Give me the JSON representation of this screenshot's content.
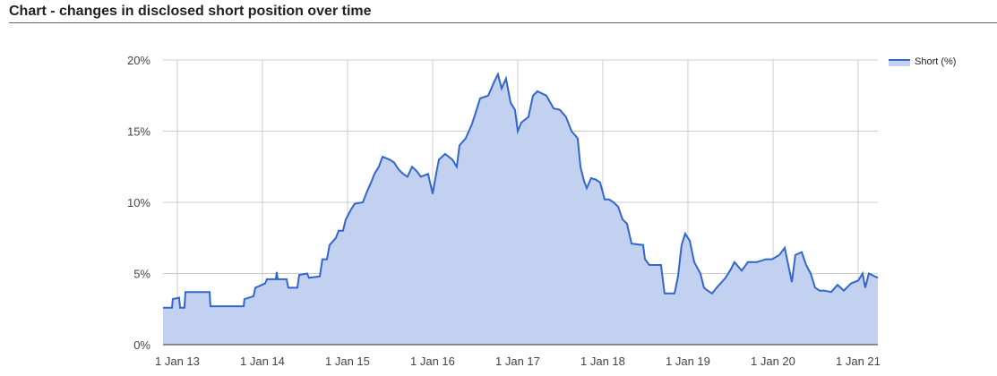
{
  "chart_data": {
    "type": "area",
    "title": "Chart - changes in disclosed short position over time",
    "series": [
      {
        "name": "Short (%)",
        "color": "#3366cc",
        "fill": "#c2d1f0",
        "x": [
          2012.832,
          2012.937,
          2012.947,
          2013.021,
          2013.032,
          2013.084,
          2013.095,
          2013.379,
          2013.389,
          2013.779,
          2013.789,
          2013.895,
          2013.916,
          2014.032,
          2014.053,
          2014.158,
          2014.168,
          2014.179,
          2014.284,
          2014.305,
          2014.411,
          2014.432,
          2014.526,
          2014.547,
          2014.674,
          2014.705,
          2014.758,
          2014.789,
          2014.863,
          2014.895,
          2014.947,
          2014.979,
          2015.042,
          2015.084,
          2015.179,
          2015.232,
          2015.284,
          2015.316,
          2015.368,
          2015.411,
          2015.495,
          2015.547,
          2015.6,
          2015.653,
          2015.705,
          2015.758,
          2015.811,
          2015.863,
          2015.947,
          2016.0,
          2016.042,
          2016.074,
          2016.147,
          2016.232,
          2016.284,
          2016.316,
          2016.389,
          2016.463,
          2016.516,
          2016.558,
          2016.653,
          2016.726,
          2016.768,
          2016.811,
          2016.863,
          2016.916,
          2016.968,
          2017.0,
          2017.042,
          2017.126,
          2017.179,
          2017.232,
          2017.337,
          2017.421,
          2017.495,
          2017.568,
          2017.632,
          2017.705,
          2017.737,
          2017.779,
          2017.811,
          2017.863,
          2017.916,
          2017.968,
          2018.021,
          2018.074,
          2018.126,
          2018.179,
          2018.232,
          2018.284,
          2018.337,
          2018.474,
          2018.495,
          2018.547,
          2018.684,
          2018.726,
          2018.842,
          2018.884,
          2018.926,
          2018.968,
          2019.021,
          2019.074,
          2019.147,
          2019.189,
          2019.232,
          2019.284,
          2019.337,
          2019.442,
          2019.505,
          2019.547,
          2019.632,
          2019.705,
          2019.811,
          2019.916,
          2019.989,
          2020.074,
          2020.137,
          2020.179,
          2020.221,
          2020.263,
          2020.337,
          2020.389,
          2020.442,
          2020.495,
          2020.547,
          2020.6,
          2020.684,
          2020.758,
          2020.832,
          2020.916,
          2021.0,
          2021.053,
          2021.084,
          2021.126,
          2021.232
        ],
        "values": [
          2.6,
          2.6,
          3.2,
          3.3,
          2.6,
          2.6,
          3.7,
          3.7,
          2.7,
          2.7,
          3.2,
          3.4,
          4.0,
          4.3,
          4.6,
          4.6,
          5.1,
          4.6,
          4.6,
          4.0,
          4.0,
          4.9,
          5.0,
          4.7,
          4.8,
          6.0,
          6.0,
          7.0,
          7.5,
          8.0,
          8.0,
          8.8,
          9.5,
          9.9,
          10.0,
          10.8,
          11.5,
          12.0,
          12.5,
          13.2,
          13.0,
          12.8,
          12.3,
          12.0,
          11.8,
          12.5,
          12.2,
          11.8,
          12.0,
          10.6,
          12.0,
          13.0,
          13.4,
          13.0,
          12.5,
          14.0,
          14.5,
          15.5,
          16.5,
          17.3,
          17.5,
          18.5,
          19.0,
          18.0,
          18.7,
          17.0,
          16.5,
          15.0,
          15.6,
          16.0,
          17.5,
          17.8,
          17.5,
          16.6,
          16.5,
          16.0,
          15.0,
          14.5,
          12.5,
          11.5,
          11.0,
          11.7,
          11.6,
          11.4,
          10.2,
          10.2,
          10.0,
          9.7,
          8.8,
          8.5,
          7.1,
          7.0,
          6.0,
          5.6,
          5.6,
          3.6,
          3.6,
          4.8,
          7.0,
          7.8,
          7.3,
          5.8,
          5.0,
          4.0,
          3.8,
          3.6,
          4.0,
          4.7,
          5.3,
          5.8,
          5.2,
          5.8,
          5.8,
          6.0,
          6.0,
          6.3,
          6.8,
          5.6,
          4.4,
          6.3,
          6.5,
          5.6,
          5.0,
          4.0,
          3.8,
          3.8,
          3.7,
          4.2,
          3.8,
          4.3,
          4.5,
          5.0,
          4.0,
          5.0,
          4.7
        ]
      }
    ],
    "xlim": [
      2012.832,
      2021.232
    ],
    "xticks": [
      {
        "value": 2013,
        "label": "1 Jan 13"
      },
      {
        "value": 2014,
        "label": "1 Jan 14"
      },
      {
        "value": 2015,
        "label": "1 Jan 15"
      },
      {
        "value": 2016,
        "label": "1 Jan 16"
      },
      {
        "value": 2017,
        "label": "1 Jan 17"
      },
      {
        "value": 2018,
        "label": "1 Jan 18"
      },
      {
        "value": 2019,
        "label": "1 Jan 19"
      },
      {
        "value": 2020,
        "label": "1 Jan 20"
      },
      {
        "value": 2021,
        "label": "1 Jan 21"
      }
    ],
    "ylim": [
      0,
      20
    ],
    "yticks": [
      {
        "value": 0,
        "label": "0%"
      },
      {
        "value": 5,
        "label": "5%"
      },
      {
        "value": 10,
        "label": "10%"
      },
      {
        "value": 15,
        "label": "15%"
      },
      {
        "value": 20,
        "label": "20%"
      }
    ],
    "grid": true,
    "legend": "top-right"
  }
}
